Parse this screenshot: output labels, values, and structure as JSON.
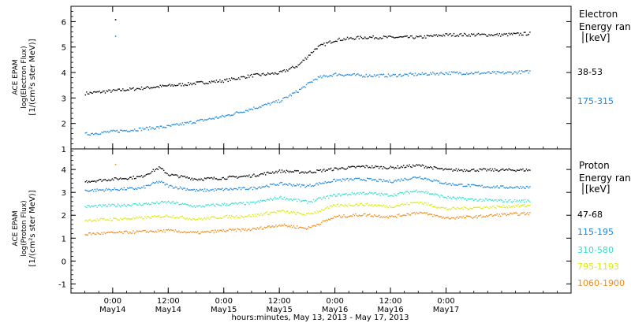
{
  "chart_data": [
    {
      "type": "scatter",
      "panel": "electron",
      "ylabel": [
        "ACE EPAM",
        "log(Electron Flux)",
        "[1/(cm²s ster MeV)]"
      ],
      "ylim": [
        1,
        6.6
      ],
      "yticks": [
        1,
        2,
        3,
        4,
        5,
        6
      ],
      "legend_title": [
        "Electron",
        "Energy ran",
        "[keV]"
      ],
      "series": [
        {
          "name": "38-53",
          "color": "#000000",
          "x": [
            -6,
            0,
            6,
            12,
            18,
            24,
            30,
            36,
            40,
            44,
            48,
            54,
            60,
            66,
            72,
            78,
            84,
            90
          ],
          "y": [
            3.2,
            3.3,
            3.4,
            3.5,
            3.6,
            3.7,
            3.9,
            4.0,
            4.3,
            5.0,
            5.3,
            5.4,
            5.4,
            5.4,
            5.5,
            5.5,
            5.5,
            5.55
          ],
          "outliers": [
            [
              0.5,
              6.1
            ]
          ]
        },
        {
          "name": "175-315",
          "color": "#1a86e0",
          "x": [
            -6,
            0,
            6,
            12,
            18,
            24,
            30,
            36,
            40,
            44,
            48,
            54,
            60,
            66,
            72,
            78,
            84,
            90
          ],
          "y": [
            1.6,
            1.7,
            1.8,
            1.9,
            2.1,
            2.3,
            2.6,
            2.9,
            3.3,
            3.8,
            3.95,
            3.9,
            3.9,
            3.95,
            4.0,
            4.0,
            4.0,
            4.05
          ],
          "outliers": [
            [
              0.5,
              5.45
            ]
          ]
        }
      ]
    },
    {
      "type": "scatter",
      "panel": "proton",
      "ylabel": [
        "ACE EPAM",
        "log(Proton Flux)",
        "[1/(cm²s ster MeV)]"
      ],
      "ylim": [
        -1.4,
        4.9
      ],
      "yticks": [
        -1,
        0,
        1,
        2,
        3,
        4
      ],
      "legend_title": [
        "Proton",
        "Energy ran",
        "[keV]"
      ],
      "series": [
        {
          "name": "47-68",
          "color": "#000000",
          "x": [
            -6,
            0,
            6,
            10,
            12,
            18,
            24,
            30,
            36,
            42,
            48,
            54,
            60,
            66,
            72,
            78,
            84,
            90
          ],
          "y": [
            3.5,
            3.6,
            3.7,
            4.1,
            3.8,
            3.6,
            3.65,
            3.75,
            3.95,
            3.9,
            4.05,
            4.15,
            4.1,
            4.2,
            4.0,
            4.0,
            4.0,
            4.0
          ]
        },
        {
          "name": "115-195",
          "color": "#1a86e0",
          "x": [
            -6,
            0,
            6,
            10,
            12,
            18,
            24,
            30,
            36,
            42,
            48,
            54,
            60,
            66,
            72,
            78,
            84,
            90
          ],
          "y": [
            3.1,
            3.15,
            3.2,
            3.5,
            3.3,
            3.1,
            3.15,
            3.2,
            3.4,
            3.3,
            3.55,
            3.6,
            3.5,
            3.7,
            3.4,
            3.3,
            3.25,
            3.25
          ]
        },
        {
          "name": "310-580",
          "color": "#33e0cc",
          "x": [
            -6,
            0,
            6,
            12,
            18,
            24,
            30,
            36,
            42,
            48,
            54,
            60,
            66,
            72,
            78,
            84,
            90
          ],
          "y": [
            2.4,
            2.45,
            2.5,
            2.6,
            2.4,
            2.5,
            2.55,
            2.8,
            2.6,
            2.9,
            3.0,
            2.9,
            3.1,
            2.8,
            2.7,
            2.65,
            2.65
          ]
        },
        {
          "name": "795-1193",
          "color": "#d8ee00",
          "x": [
            -6,
            0,
            6,
            12,
            18,
            24,
            30,
            36,
            42,
            48,
            54,
            60,
            66,
            72,
            78,
            84,
            90
          ],
          "y": [
            1.8,
            1.85,
            1.9,
            2.0,
            1.85,
            1.95,
            2.0,
            2.2,
            2.05,
            2.45,
            2.5,
            2.4,
            2.6,
            2.3,
            2.35,
            2.4,
            2.45
          ]
        },
        {
          "name": "1060-1900",
          "color": "#f08a18",
          "x": [
            -6,
            0,
            6,
            12,
            18,
            24,
            30,
            36,
            42,
            48,
            54,
            60,
            66,
            72,
            78,
            84,
            90
          ],
          "y": [
            1.2,
            1.25,
            1.3,
            1.35,
            1.25,
            1.35,
            1.4,
            1.6,
            1.45,
            1.95,
            2.05,
            1.95,
            2.15,
            1.9,
            1.95,
            2.05,
            2.1
          ],
          "outliers": [
            [
              0.5,
              4.25
            ]
          ]
        }
      ]
    }
  ],
  "x_axis": {
    "xlim": [
      -9,
      99
    ],
    "ticks": [
      {
        "x": 0,
        "time": "0:00",
        "date": "May14"
      },
      {
        "x": 12,
        "time": "12:00",
        "date": "May14"
      },
      {
        "x": 24,
        "time": "0:00",
        "date": "May15"
      },
      {
        "x": 36,
        "time": "12:00",
        "date": "May15"
      },
      {
        "x": 48,
        "time": "0:00",
        "date": "May16"
      },
      {
        "x": 60,
        "time": "12:00",
        "date": "May16"
      },
      {
        "x": 72,
        "time": "0:00",
        "date": "May17"
      }
    ],
    "xlabel": "hours:minutes, May 13, 2013 - May 17, 2013"
  },
  "colors": {
    "black": "#000000",
    "blue": "#1a86e0",
    "cyan": "#33e0cc",
    "yellow": "#d8ee00",
    "orange": "#f08a18"
  }
}
